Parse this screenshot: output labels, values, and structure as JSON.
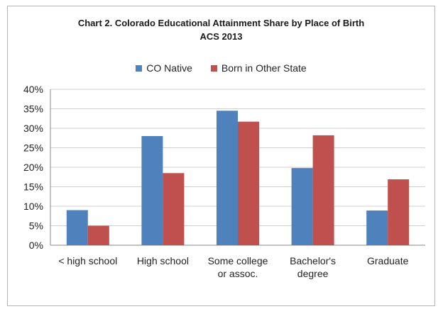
{
  "chart_data": {
    "type": "bar",
    "title": "Chart 2. Colorado Educational Attainment Share by Place of Birth",
    "subtitle": "ACS 2013",
    "categories": [
      [
        "< high school"
      ],
      [
        "High school"
      ],
      [
        "Some college",
        "or assoc."
      ],
      [
        "Bachelor's",
        "degree"
      ],
      [
        "Graduate"
      ]
    ],
    "series": [
      {
        "name": "CO Native",
        "color": "#4f81bd",
        "values": [
          0.09,
          0.28,
          0.345,
          0.198,
          0.089
        ]
      },
      {
        "name": "Born in Other State",
        "color": "#c0504d",
        "values": [
          0.05,
          0.185,
          0.317,
          0.282,
          0.169
        ]
      }
    ],
    "ylim": [
      0,
      0.4
    ],
    "yticks": [
      "0%",
      "5%",
      "10%",
      "15%",
      "20%",
      "25%",
      "30%",
      "35%",
      "40%"
    ],
    "grid": true,
    "legend": "top-center"
  }
}
